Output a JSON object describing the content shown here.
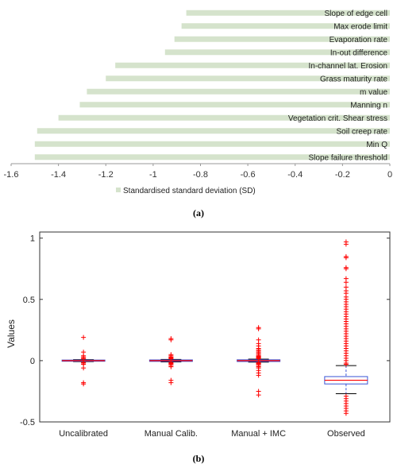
{
  "colors": {
    "bar": "#d5e3cc",
    "outlier": "#ff0000",
    "box": "#3a55d6",
    "median": "#ff0000",
    "whisker": "#3a55d6",
    "axis": "#333333"
  },
  "chart_data": [
    {
      "type": "bar",
      "orientation": "horizontal",
      "categories": [
        "Slope of edge cell",
        "Max erode limit",
        "Evaporation rate",
        "In-out difference",
        "In-channel lat. Erosion",
        "Grass maturity rate",
        "m value",
        "Manning n",
        "Vegetation crit. Shear stress",
        "Soil creep rate",
        "Min Q",
        "Slope failure threshold"
      ],
      "series": [
        {
          "name": "Standardised standard deviation (SD)",
          "values": [
            -0.86,
            -0.88,
            -0.91,
            -0.95,
            -1.16,
            -1.2,
            -1.28,
            -1.31,
            -1.4,
            -1.49,
            -1.5,
            -1.5
          ]
        }
      ],
      "xlim": [
        -1.6,
        0
      ],
      "xticks": [
        "-1.6",
        "-1.4",
        "-1.2",
        "-1",
        "-0.8",
        "-0.6",
        "-0.4",
        "-0.2",
        "0"
      ],
      "legend_position": "bottom-center",
      "panel_label": "(a)"
    },
    {
      "type": "box",
      "categories": [
        "Uncalibrated",
        "Manual Calib.",
        "Manual + IMC",
        "Observed"
      ],
      "ylabel": "Values",
      "ylim": [
        -0.5,
        1.05
      ],
      "yticks": [
        "1",
        "0.5",
        "0",
        "-0.5"
      ],
      "boxes": [
        {
          "q1": -0.005,
          "median": 0.0,
          "q3": 0.005,
          "whisker_low": -0.008,
          "whisker_high": 0.008,
          "outliers": [
            0.19,
            0.07,
            0.04,
            0.03,
            0.02,
            0.015,
            -0.015,
            -0.02,
            -0.03,
            -0.06,
            -0.18,
            -0.19
          ]
        },
        {
          "q1": -0.006,
          "median": 0.0,
          "q3": 0.006,
          "whisker_low": -0.01,
          "whisker_high": 0.01,
          "outliers": [
            0.18,
            0.17,
            0.05,
            0.04,
            0.03,
            0.025,
            0.02,
            0.015,
            -0.015,
            -0.02,
            -0.025,
            -0.03,
            -0.04,
            -0.05,
            -0.16,
            -0.18
          ]
        },
        {
          "q1": -0.007,
          "median": 0.0,
          "q3": 0.007,
          "whisker_low": -0.012,
          "whisker_high": 0.012,
          "outliers": [
            0.27,
            0.26,
            0.17,
            0.14,
            0.12,
            0.1,
            0.09,
            0.08,
            0.07,
            0.06,
            0.05,
            0.04,
            0.035,
            0.03,
            0.025,
            0.02,
            0.015,
            -0.015,
            -0.02,
            -0.025,
            -0.03,
            -0.04,
            -0.05,
            -0.06,
            -0.08,
            -0.1,
            -0.12,
            -0.25,
            -0.28
          ]
        },
        {
          "q1": -0.19,
          "median": -0.16,
          "q3": -0.13,
          "whisker_low": -0.27,
          "whisker_high": -0.04,
          "outliers": [
            0.97,
            0.95,
            0.85,
            0.84,
            0.76,
            0.75,
            0.67,
            0.64,
            0.6,
            0.57,
            0.55,
            0.52,
            0.5,
            0.48,
            0.46,
            0.44,
            0.42,
            0.4,
            0.38,
            0.36,
            0.34,
            0.32,
            0.3,
            0.28,
            0.26,
            0.24,
            0.22,
            0.2,
            0.18,
            0.16,
            0.14,
            0.12,
            0.1,
            0.08,
            0.06,
            0.04,
            0.02,
            0.0,
            -0.02,
            -0.03,
            -0.29,
            -0.31,
            -0.33,
            -0.35,
            -0.37,
            -0.39,
            -0.41,
            -0.43
          ]
        }
      ],
      "panel_label": "(b)"
    }
  ]
}
